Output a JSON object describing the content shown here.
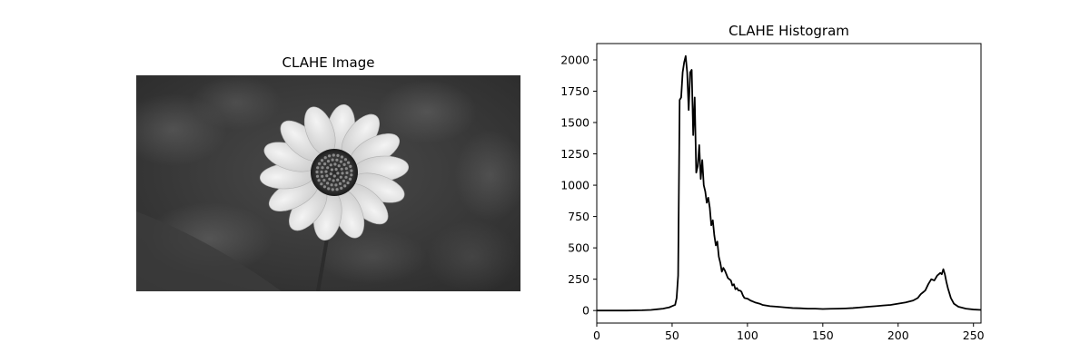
{
  "left_panel": {
    "title": "CLAHE Image",
    "image_subject": "flower-grayscale-photo"
  },
  "chart_data": {
    "type": "line",
    "title": "CLAHE Histogram",
    "xlabel": "",
    "ylabel": "",
    "xlim": [
      0,
      255
    ],
    "ylim": [
      -100,
      2130
    ],
    "grid": false,
    "legend": "none",
    "line_color": "#000000",
    "x_ticks": [
      0,
      50,
      100,
      150,
      200,
      250
    ],
    "y_ticks": [
      0,
      250,
      500,
      750,
      1000,
      1250,
      1500,
      1750,
      2000
    ],
    "series": [
      {
        "name": "",
        "x": [
          0,
          10,
          20,
          30,
          36,
          40,
          44,
          46,
          48,
          50,
          52,
          53,
          54,
          55,
          56,
          57,
          58,
          59,
          60,
          61,
          62,
          63,
          64,
          65,
          66,
          67,
          68,
          69,
          70,
          71,
          72,
          73,
          74,
          75,
          76,
          77,
          78,
          79,
          80,
          81,
          82,
          83,
          84,
          85,
          86,
          87,
          88,
          89,
          90,
          91,
          92,
          93,
          94,
          95,
          96,
          97,
          98,
          100,
          102,
          105,
          108,
          110,
          115,
          120,
          125,
          130,
          135,
          140,
          145,
          150,
          155,
          160,
          165,
          170,
          175,
          180,
          185,
          190,
          195,
          200,
          205,
          210,
          213,
          215,
          218,
          220,
          222,
          224,
          226,
          228,
          229,
          230,
          231,
          232,
          233,
          235,
          237,
          240,
          245,
          250,
          255
        ],
        "values": [
          0,
          0,
          0,
          2,
          5,
          10,
          15,
          20,
          25,
          35,
          45,
          100,
          280,
          1680,
          1700,
          1900,
          1980,
          2030,
          1900,
          1600,
          1900,
          1920,
          1400,
          1700,
          1100,
          1150,
          1320,
          1050,
          1200,
          1000,
          950,
          860,
          900,
          820,
          680,
          720,
          600,
          520,
          550,
          430,
          380,
          310,
          340,
          320,
          290,
          260,
          250,
          240,
          200,
          210,
          170,
          180,
          160,
          160,
          150,
          120,
          100,
          95,
          80,
          65,
          55,
          45,
          35,
          30,
          25,
          20,
          18,
          15,
          15,
          12,
          14,
          15,
          17,
          20,
          25,
          30,
          35,
          40,
          45,
          55,
          65,
          80,
          100,
          130,
          160,
          210,
          250,
          240,
          280,
          300,
          290,
          330,
          290,
          230,
          180,
          100,
          55,
          30,
          15,
          8,
          5
        ]
      }
    ]
  }
}
